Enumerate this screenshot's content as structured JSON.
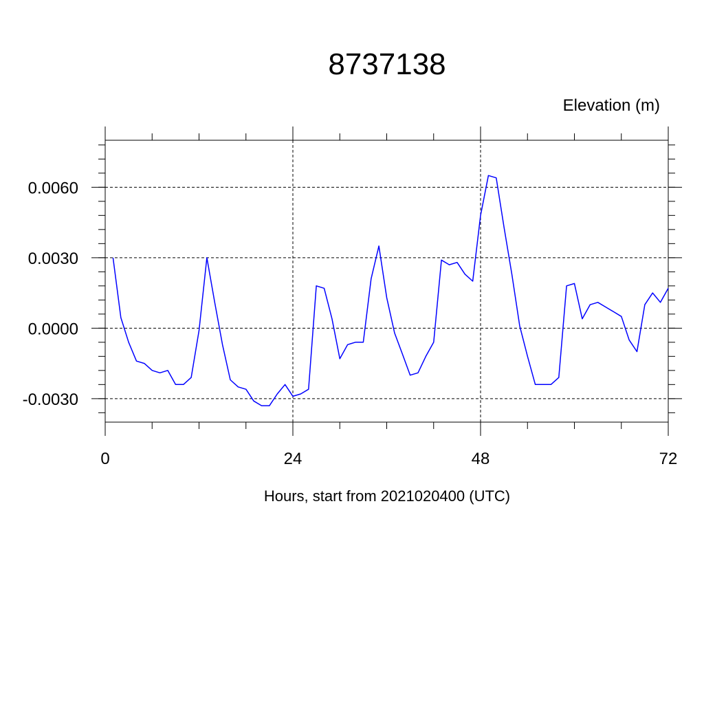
{
  "chart_data": {
    "type": "line",
    "title": "8737138",
    "units_label": "Elevation (m)",
    "xlabel": "Hours, start from 2021020400 (UTC)",
    "ylabel": "",
    "xlim": [
      0,
      72
    ],
    "ylim": [
      -0.004,
      0.008
    ],
    "x_ticks": [
      0,
      24,
      48,
      72
    ],
    "x_tick_labels": [
      "0",
      "24",
      "48",
      "72"
    ],
    "y_ticks": [
      -0.003,
      0.0,
      0.003,
      0.006
    ],
    "y_tick_labels": [
      "-0.0030",
      "0.0000",
      "0.0030",
      "0.0060"
    ],
    "grid": true,
    "line_color": "#0000ff",
    "series": [
      {
        "x": [
          1,
          2,
          3,
          4,
          5,
          6,
          7,
          8,
          9,
          10,
          11,
          12,
          13,
          14,
          15,
          16,
          17,
          18,
          19,
          20,
          21,
          22,
          23,
          24,
          25,
          26,
          27,
          28,
          29,
          30,
          31,
          32,
          33,
          34,
          35,
          36,
          37,
          38,
          39,
          40,
          41,
          42,
          43,
          44,
          45,
          46,
          47,
          48,
          49,
          50,
          51,
          52,
          53,
          54,
          55,
          56,
          57,
          58,
          59,
          60,
          61,
          62,
          63,
          64,
          65,
          66,
          67,
          68,
          69,
          70,
          71,
          72
        ],
        "values": [
          0.003,
          0.00045,
          -0.0006,
          -0.0014,
          -0.0015,
          -0.0018,
          -0.0019,
          -0.0018,
          -0.0024,
          -0.0024,
          -0.0021,
          -0.0001,
          0.003,
          0.0011,
          -0.0007,
          -0.0022,
          -0.0025,
          -0.0026,
          -0.0031,
          -0.0033,
          -0.0033,
          -0.0028,
          -0.0024,
          -0.0029,
          -0.0028,
          -0.0026,
          0.0018,
          0.0017,
          0.0004,
          -0.0013,
          -0.0007,
          -0.0006,
          -0.0006,
          0.0021,
          0.0035,
          0.0013,
          -0.0002,
          -0.0011,
          -0.002,
          -0.0019,
          -0.0012,
          -0.0006,
          0.0029,
          0.0027,
          0.0028,
          0.0023,
          0.002,
          0.0048,
          0.0065,
          0.0064,
          0.0043,
          0.0023,
          0.0001,
          -0.0012,
          -0.0024,
          -0.0024,
          -0.0024,
          -0.0021,
          0.0018,
          0.0019,
          0.0004,
          0.001,
          0.0011,
          0.0009,
          0.0007,
          0.0005,
          -0.0005,
          -0.001,
          0.001,
          0.0015,
          0.0011,
          0.0017
        ]
      }
    ]
  }
}
